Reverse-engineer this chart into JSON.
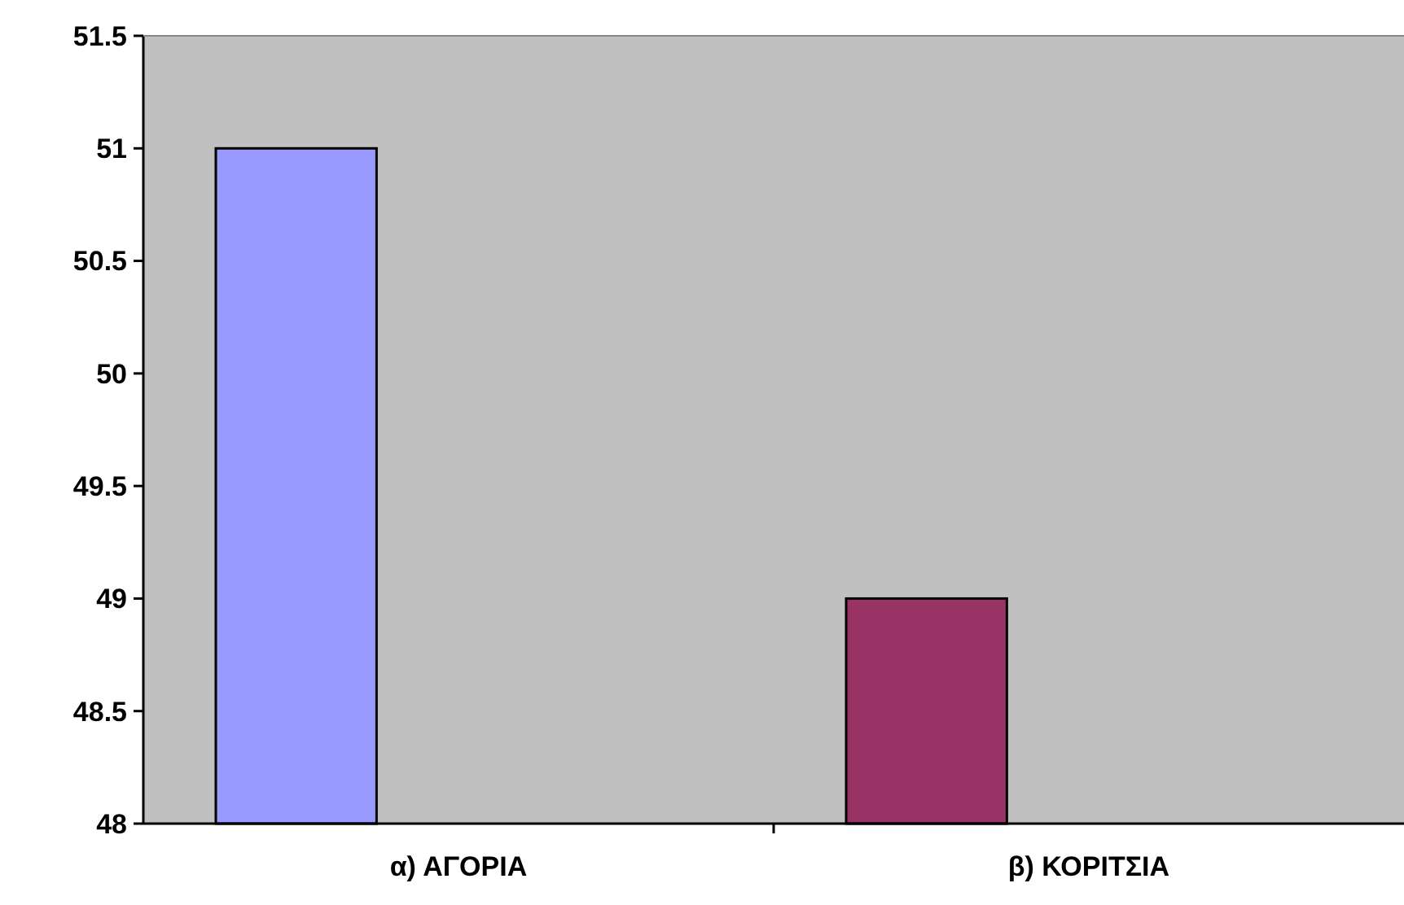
{
  "chart_data": {
    "type": "bar",
    "categories": [
      "α) ΑΓΟΡΙΑ",
      "β) ΚΟΡΙΤΣΙΑ"
    ],
    "values": [
      51,
      49
    ],
    "colors": [
      "#9999ff",
      "#993366"
    ],
    "ylim": [
      48,
      51.5
    ],
    "yticks": [
      48,
      48.5,
      49,
      49.5,
      50,
      50.5,
      51,
      51.5
    ],
    "grid": false
  }
}
